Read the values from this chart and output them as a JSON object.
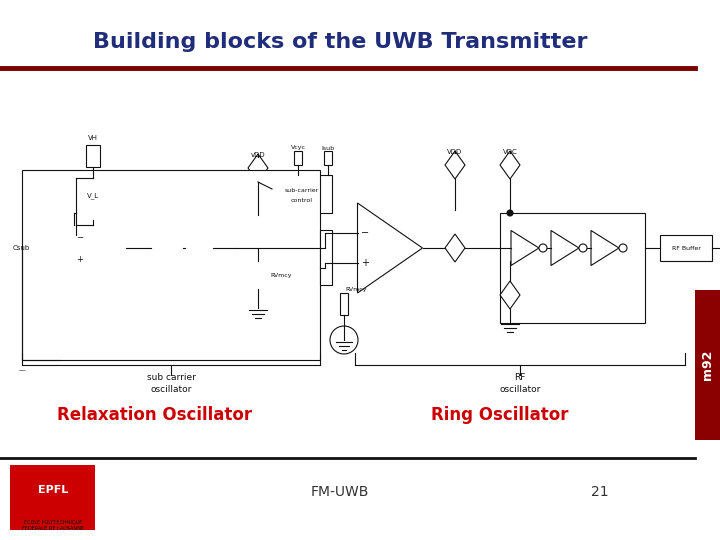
{
  "title": "Building blocks of the UWB Transmitter",
  "title_color": "#1f2d7b",
  "title_fontsize": 16,
  "bg_color": "#ffffff",
  "header_line_color": "#7b0000",
  "label_relaxation": "Relaxation Oscillator",
  "label_ring": "Ring Oscillator",
  "label_color": "#cc0000",
  "label_fontsize": 12,
  "footer_text": "FM-UWB",
  "footer_number": "21",
  "footer_color": "#333333",
  "footer_fontsize": 10,
  "sidebar_color": "#8b0000",
  "line_color": "#111111",
  "line_width": 0.8
}
